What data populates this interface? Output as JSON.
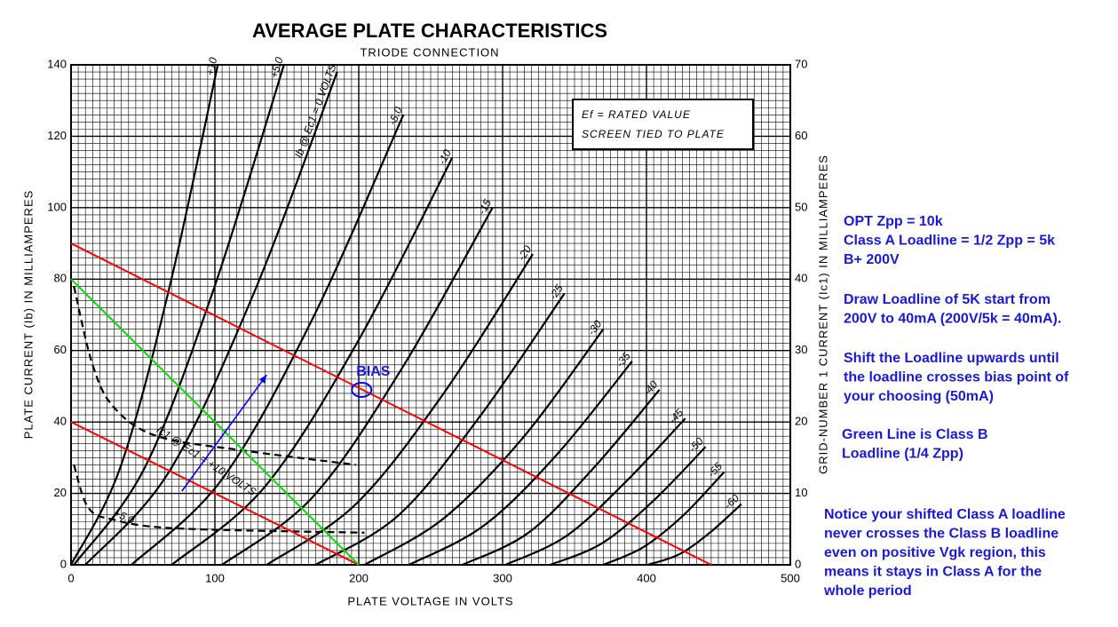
{
  "chart_data": {
    "type": "line",
    "title": "AVERAGE PLATE CHARACTERISTICS",
    "subtitle": "TRIODE CONNECTION",
    "x_label": "PLATE VOLTAGE IN VOLTS",
    "y_label": "PLATE CURRENT (Ib) IN MILLIAMPERES",
    "y2_label": "GRID-NUMBER 1 CURRENT (Ic1) IN MILLIAMPERES",
    "note_box": [
      "Ef = RATED VALUE",
      "SCREEN TIED TO PLATE"
    ],
    "xlim": [
      0,
      500
    ],
    "xticks": [
      0,
      100,
      200,
      300,
      400,
      500
    ],
    "ylim": [
      0,
      140
    ],
    "yticks": [
      0,
      20,
      40,
      60,
      80,
      100,
      120,
      140
    ],
    "y2lim": [
      0,
      70
    ],
    "y2ticks": [
      0,
      10,
      20,
      30,
      40,
      50,
      60,
      70
    ],
    "grid": true,
    "minor_grid": {
      "x": 5,
      "y": 2
    },
    "series": [
      {
        "name": "+10",
        "color": "#000000",
        "x": [
          0,
          34,
          68,
          102
        ],
        "values": [
          0,
          27,
          77,
          140
        ]
      },
      {
        "name": "+5.0",
        "color": "#000000",
        "x": [
          2,
          51,
          99,
          148
        ],
        "values": [
          0,
          27,
          77,
          140
        ]
      },
      {
        "name": "Ib @ Ec1 = 0 VOLTS",
        "color": "#000000",
        "x": [
          10,
          68,
          127,
          185
        ],
        "values": [
          0,
          26,
          76,
          138
        ]
      },
      {
        "name": "-5.0",
        "color": "#000000",
        "x": [
          42,
          105,
          168,
          231
        ],
        "values": [
          0,
          24,
          69,
          126
        ]
      },
      {
        "name": "-10",
        "color": "#000000",
        "x": [
          70,
          135,
          200,
          265
        ],
        "values": [
          0,
          22,
          63,
          114
        ]
      },
      {
        "name": "-15",
        "color": "#000000",
        "x": [
          105,
          168,
          230,
          293
        ],
        "values": [
          0,
          19,
          55,
          100
        ]
      },
      {
        "name": "-20",
        "color": "#000000",
        "x": [
          136,
          198,
          259,
          321
        ],
        "values": [
          0,
          17,
          48,
          87
        ]
      },
      {
        "name": "-25",
        "color": "#000000",
        "x": [
          170,
          228,
          285,
          343
        ],
        "values": [
          0,
          14,
          42,
          76
        ]
      },
      {
        "name": "-30",
        "color": "#000000",
        "x": [
          204,
          259,
          315,
          370
        ],
        "values": [
          0,
          13,
          36,
          66
        ]
      },
      {
        "name": "-35",
        "color": "#000000",
        "x": [
          235,
          287,
          338,
          390
        ],
        "values": [
          0,
          11,
          31,
          57
        ]
      },
      {
        "name": "-40",
        "color": "#000000",
        "x": [
          272,
          318,
          363,
          409
        ],
        "values": [
          0,
          9,
          27,
          49
        ]
      },
      {
        "name": "-45",
        "color": "#000000",
        "x": [
          302,
          344,
          385,
          427
        ],
        "values": [
          0,
          8,
          23,
          41
        ]
      },
      {
        "name": "-50",
        "color": "#000000",
        "x": [
          333,
          369,
          405,
          441
        ],
        "values": [
          0,
          6,
          18,
          33
        ]
      },
      {
        "name": "-55",
        "color": "#000000",
        "x": [
          370,
          398,
          426,
          454
        ],
        "values": [
          0,
          5,
          14,
          26
        ]
      },
      {
        "name": "-60",
        "color": "#000000",
        "x": [
          401,
          423,
          444,
          466
        ],
        "values": [
          0,
          3,
          9,
          17
        ]
      },
      {
        "name": "Ic1 @ Ec1 = +10 VOLTS",
        "color": "#000000",
        "dashed": true,
        "axis": "y2",
        "x": [
          2,
          15,
          30,
          60,
          120,
          198
        ],
        "values": [
          39,
          28,
          22,
          18,
          16,
          14
        ]
      },
      {
        "name": "+5.0",
        "color": "#000000",
        "dashed": true,
        "axis": "y2",
        "x": [
          2,
          12,
          30,
          74,
          204
        ],
        "values": [
          14,
          8,
          6.3,
          5.1,
          4.5
        ]
      }
    ],
    "load_lines": [
      {
        "color": "#ff0000",
        "x": [
          0,
          200
        ],
        "values": [
          40,
          0
        ]
      },
      {
        "color": "#ff0000",
        "x": [
          0,
          445
        ],
        "values": [
          90,
          0
        ]
      },
      {
        "color": "#00e000",
        "x": [
          0,
          200
        ],
        "values": [
          80,
          0
        ]
      }
    ],
    "arrow": {
      "color": "#0000ff",
      "x": [
        77,
        136
      ],
      "values": [
        20.6,
        53.2
      ]
    },
    "bias_marker": {
      "label": "BIAS",
      "color": "#0000ff",
      "x": 202,
      "value": 49
    },
    "annotations": [
      [
        "OPT Zpp = 10k",
        "Class A Loadline = 1/2 Zpp = 5k",
        "B+ 200V"
      ],
      [
        "Draw Loadline of 5K start from",
        "200V to 40mA (200V/5k = 40mA)."
      ],
      [
        "Shift the Loadline upwards until",
        "the loadline crosses bias point of",
        "your choosing (50mA)"
      ],
      [
        "Green Line is Class B",
        "Loadline (1/4 Zpp)"
      ],
      [
        "Notice your shifted Class A loadline",
        "never crosses the Class B loadline",
        "even on positive Vgk region, this",
        "means it stays in Class A for the",
        "whole period"
      ]
    ]
  }
}
